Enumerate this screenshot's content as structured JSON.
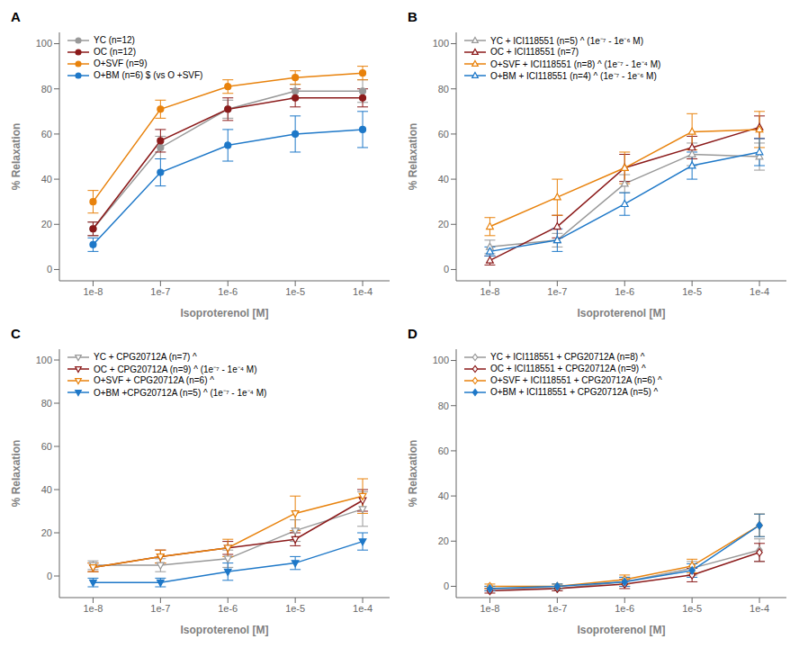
{
  "chart_data": [
    {
      "type": "line",
      "title": "A",
      "x_label": "Isoproterenol [M]",
      "y_label": "% Relaxation",
      "x": [
        1e-08,
        1e-07,
        1e-06,
        1e-05,
        0.0001
      ],
      "log": "x",
      "xlim": [
        3.1622776601683795e-09,
        0.0002511886431509582
      ],
      "xticks": [
        {
          "value": 1e-08,
          "label": "1e-8"
        },
        {
          "value": 1e-07,
          "label": "1e-7"
        },
        {
          "value": 1e-06,
          "label": "1e-6"
        },
        {
          "value": 1e-05,
          "label": "1e-5"
        },
        {
          "value": 0.0001,
          "label": "1e-4"
        }
      ],
      "ylim": [
        -5,
        105
      ],
      "yticks": [
        0,
        20,
        40,
        60,
        80,
        100
      ],
      "grid": false,
      "legend": "upper left",
      "series": [
        {
          "name": "YC (n=12)",
          "color": "#999999",
          "marker": "circle",
          "values": [
            18,
            54,
            71,
            79,
            79
          ],
          "errors": [
            3,
            5,
            4,
            3,
            5
          ]
        },
        {
          "name": "OC (n=12)",
          "color": "#8B1A1A",
          "marker": "circle",
          "values": [
            18,
            57,
            71,
            76,
            76
          ],
          "errors": [
            3,
            5,
            5,
            4,
            4
          ]
        },
        {
          "name": "O+SVF (n=9)",
          "color": "#E8820C",
          "marker": "circle",
          "values": [
            30,
            71,
            81,
            85,
            87
          ],
          "errors": [
            5,
            4,
            3,
            3,
            3
          ]
        },
        {
          "name": "O+BM (n=6) $ (vs O +SVF)",
          "color": "#1E78C8",
          "marker": "circle",
          "values": [
            11,
            43,
            55,
            60,
            62
          ],
          "errors": [
            3,
            6,
            7,
            8,
            8
          ]
        }
      ]
    },
    {
      "type": "line",
      "title": "B",
      "x_label": "Isoproterenol [M]",
      "y_label": "% Relaxation",
      "x": [
        1e-08,
        1e-07,
        1e-06,
        1e-05,
        0.0001
      ],
      "log": "x",
      "xlim": [
        3.1622776601683795e-09,
        0.0002511886431509582
      ],
      "xticks": [
        {
          "value": 1e-08,
          "label": "1e-8"
        },
        {
          "value": 1e-07,
          "label": "1e-7"
        },
        {
          "value": 1e-06,
          "label": "1e-6"
        },
        {
          "value": 1e-05,
          "label": "1e-5"
        },
        {
          "value": 0.0001,
          "label": "1e-4"
        }
      ],
      "ylim": [
        -5,
        105
      ],
      "yticks": [
        0,
        20,
        40,
        60,
        80,
        100
      ],
      "grid": false,
      "legend": "upper left",
      "series": [
        {
          "name": "YC + ICI118551 (n=5) ^ (1e⁻⁷ - 1e⁻⁶ M)",
          "color": "#999999",
          "marker": "triangle-open",
          "values": [
            10,
            13,
            38,
            51,
            50
          ],
          "errors": [
            3,
            3,
            4,
            5,
            6
          ]
        },
        {
          "name": "OC + ICI118551 (n=7)",
          "color": "#8B1A1A",
          "marker": "triangle-open",
          "values": [
            4,
            19,
            45,
            54,
            63
          ],
          "errors": [
            2,
            5,
            6,
            5,
            5
          ]
        },
        {
          "name": "O+SVF + ICI118551 (n=8) ^ (1e⁻⁷ - 1e⁻⁴ M)",
          "color": "#E8820C",
          "marker": "triangle-open",
          "values": [
            19,
            32,
            45,
            61,
            62
          ],
          "errors": [
            4,
            8,
            7,
            8,
            8
          ]
        },
        {
          "name": "O+BM + ICI118551 (n=4) ^ (1e⁻⁷ - 1e⁻⁶ M)",
          "color": "#1E78C8",
          "marker": "triangle-open",
          "values": [
            8,
            13,
            29,
            46,
            52
          ],
          "errors": [
            2,
            5,
            5,
            6,
            6
          ]
        }
      ]
    },
    {
      "type": "line",
      "title": "C",
      "x_label": "Isoproterenol [M]",
      "y_label": "% Relaxation",
      "x": [
        1e-08,
        1e-07,
        1e-06,
        1e-05,
        0.0001
      ],
      "log": "x",
      "xlim": [
        3.1622776601683795e-09,
        0.0002511886431509582
      ],
      "xticks": [
        {
          "value": 1e-08,
          "label": "1e-8"
        },
        {
          "value": 1e-07,
          "label": "1e-7"
        },
        {
          "value": 1e-06,
          "label": "1e-6"
        },
        {
          "value": 1e-05,
          "label": "1e-5"
        },
        {
          "value": 0.0001,
          "label": "1e-4"
        }
      ],
      "ylim": [
        -10,
        105
      ],
      "yticks": [
        0,
        20,
        40,
        60,
        80,
        100
      ],
      "grid": false,
      "legend": "upper left",
      "series": [
        {
          "name": "YC + CPG20712A (n=7) ^",
          "color": "#999999",
          "marker": "triangle-down-open",
          "values": [
            5,
            5,
            8,
            21,
            31
          ],
          "errors": [
            2,
            3,
            4,
            5,
            8
          ]
        },
        {
          "name": "OC + CPG20712A (n=9) ^ (1e⁻⁷ - 1e⁻⁴ M)",
          "color": "#8B1A1A",
          "marker": "triangle-down-open",
          "values": [
            4,
            9,
            13,
            17,
            35
          ],
          "errors": [
            2,
            3,
            3,
            3,
            5
          ]
        },
        {
          "name": "O+SVF + CPG20712A (n=6) ^",
          "color": "#E8820C",
          "marker": "triangle-down-open",
          "values": [
            4,
            9,
            13,
            29,
            37
          ],
          "errors": [
            2,
            3,
            4,
            8,
            8
          ]
        },
        {
          "name": "O+BM +CPG20712A (n=5) ^ (1e⁻⁷ - 1e⁻⁴ M)",
          "color": "#1E78C8",
          "marker": "triangle-down",
          "values": [
            -3,
            -3,
            2,
            6,
            16
          ],
          "errors": [
            2,
            2,
            4,
            3,
            4
          ]
        }
      ]
    },
    {
      "type": "line",
      "title": "D",
      "x_label": "Isoproterenol [M]",
      "y_label": "% Relaxation",
      "x": [
        1e-08,
        1e-07,
        1e-06,
        1e-05,
        0.0001
      ],
      "log": "x",
      "xlim": [
        3.1622776601683795e-09,
        0.0002511886431509582
      ],
      "xticks": [
        {
          "value": 1e-08,
          "label": "1e-8"
        },
        {
          "value": 1e-07,
          "label": "1e-7"
        },
        {
          "value": 1e-06,
          "label": "1e-6"
        },
        {
          "value": 1e-05,
          "label": "1e-5"
        },
        {
          "value": 0.0001,
          "label": "1e-4"
        }
      ],
      "ylim": [
        -5,
        105
      ],
      "yticks": [
        0,
        20,
        40,
        60,
        80,
        100
      ],
      "grid": false,
      "legend": "upper left",
      "series": [
        {
          "name": "YC + ICI118551 + CPG20712A (n=8) ^",
          "color": "#999999",
          "marker": "diamond-open",
          "values": [
            -1,
            -1,
            2,
            8,
            16
          ],
          "errors": [
            1,
            1,
            2,
            3,
            5
          ]
        },
        {
          "name": "OC + ICI118551 + CPG20712A (n=9) ^",
          "color": "#8B1A1A",
          "marker": "diamond-open",
          "values": [
            -2,
            -1,
            1,
            5,
            15
          ],
          "errors": [
            1,
            1,
            2,
            3,
            4
          ]
        },
        {
          "name": "O+SVF + ICI118551 + CPG20712A (n=6) ^",
          "color": "#E8820C",
          "marker": "diamond-open",
          "values": [
            0,
            0,
            3,
            9,
            27
          ],
          "errors": [
            1,
            1,
            2,
            3,
            5
          ]
        },
        {
          "name": "O+BM + ICI118551 + CPG20712A (n=5) ^",
          "color": "#1E78C8",
          "marker": "diamond",
          "values": [
            -1,
            0,
            2,
            7,
            27
          ],
          "errors": [
            1,
            1,
            2,
            3,
            5
          ]
        }
      ]
    }
  ]
}
